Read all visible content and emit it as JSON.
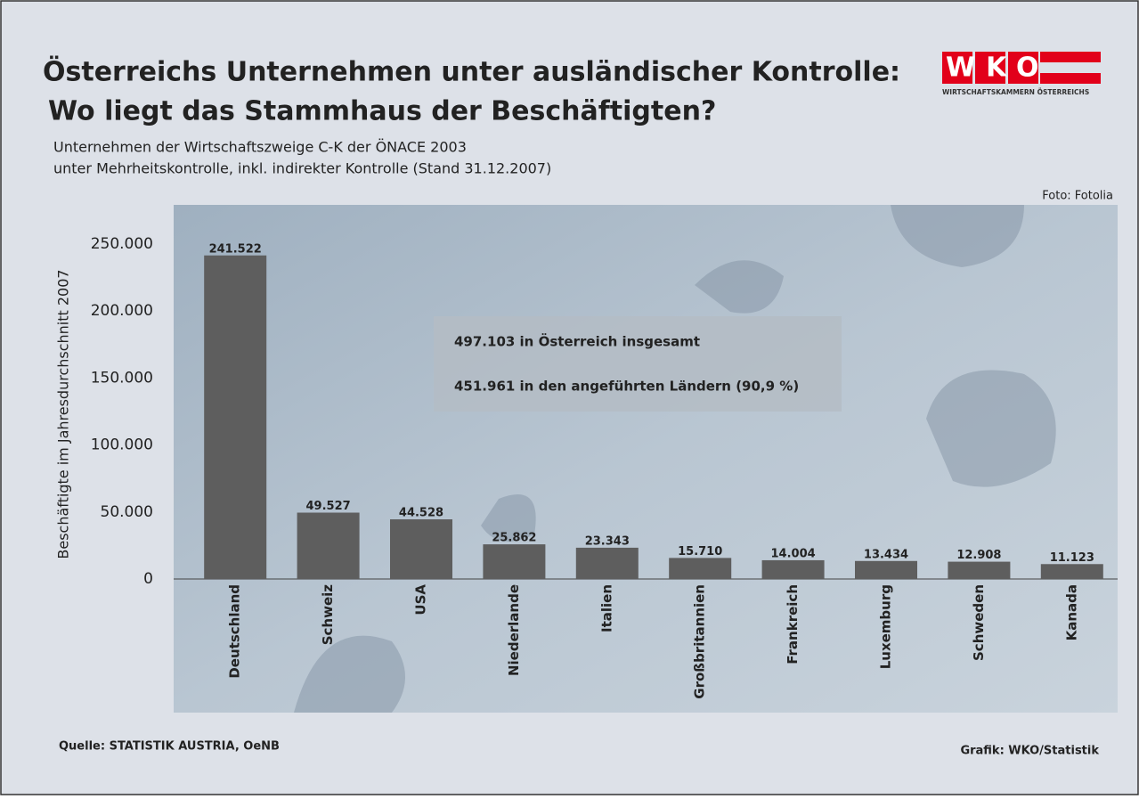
{
  "chart_data": {
    "type": "bar",
    "title": [
      "Österreichs Unternehmen unter ausländischer Kontrolle:",
      "Wo liegt das Stammhaus der Beschäftigten?"
    ],
    "subtitle": [
      "Unternehmen der Wirtschaftszweige C-K der ÖNACE 2003",
      "unter Mehrheitskontrolle, inkl. indirekter Kontrolle (Stand 31.12.2007)"
    ],
    "logo": {
      "text": "WKO",
      "caption": "WIRTSCHAFTSKAMMERN ÖSTERREICHS"
    },
    "photo_credit": "Foto: Fotolia",
    "ylabel": "Beschäftigte im Jahresdurchschnitt 2007",
    "categories": [
      "Deutschland",
      "Schweiz",
      "USA",
      "Niederlande",
      "Italien",
      "Großbritannien",
      "Frankreich",
      "Luxemburg",
      "Schweden",
      "Kanada"
    ],
    "values": [
      241522,
      49527,
      44528,
      25862,
      23343,
      15710,
      14004,
      13434,
      12908,
      11123
    ],
    "value_labels": [
      "241.522",
      "49.527",
      "44.528",
      "25.862",
      "23.343",
      "15.710",
      "14.004",
      "13.434",
      "12.908",
      "11.123"
    ],
    "color": "#5e5e5e",
    "ylim": [
      0,
      250000
    ],
    "yticks": [
      0,
      {
        "value": 50000,
        "label": "50.000"
      },
      {
        "value": 100000,
        "label": "100.000"
      },
      {
        "value": 150000,
        "label": "150.000"
      },
      {
        "value": 200000,
        "label": "200.000"
      },
      {
        "value": 250000,
        "label": "250.000"
      }
    ],
    "annotations": [
      "497.103 in Österreich insgesamt",
      "451.961 in den angeführten Ländern (90,9 %)"
    ],
    "source": "Quelle: STATISTIK AUSTRIA, OeNB",
    "credit": "Grafik: WKO/Statistik"
  }
}
